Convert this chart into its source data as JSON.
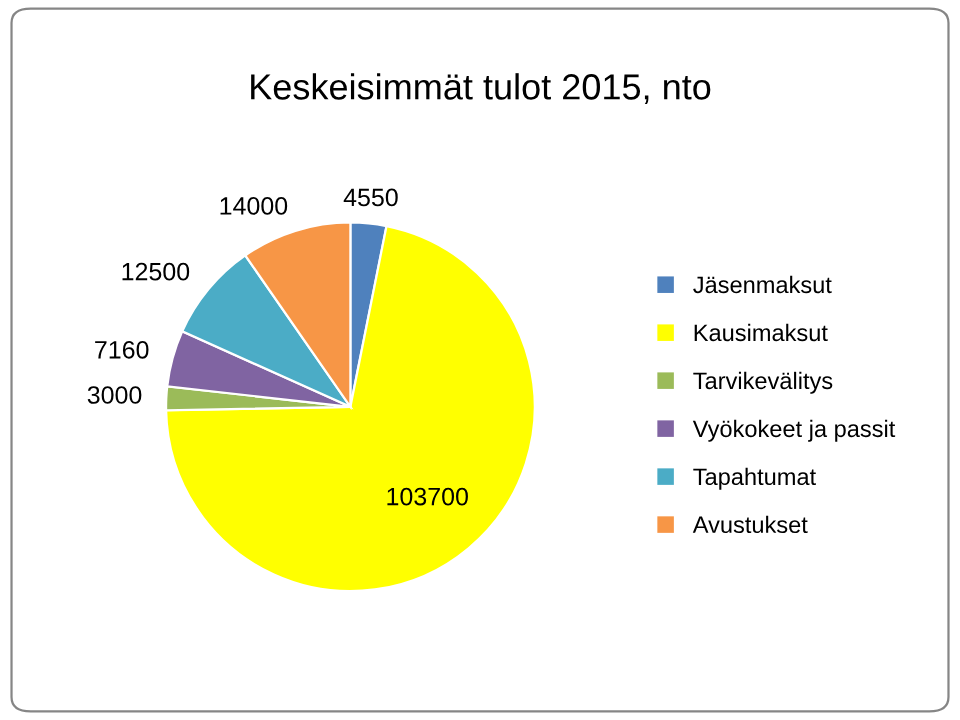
{
  "chart_data": {
    "type": "pie",
    "title": "Keskeisimmät tulot 2015, nto",
    "categories": [
      "Jäsenmaksut",
      "Kausimaksut",
      "Tarvikevälitys",
      "Vyökokeet ja passit",
      "Tapahtumat",
      "Avustukset"
    ],
    "values": [
      4550,
      103700,
      3000,
      7160,
      12500,
      14000
    ],
    "colors": [
      "#4f81bd",
      "#ffff00",
      "#9bbb59",
      "#8064a2",
      "#4bacc6",
      "#f79646"
    ],
    "data_labels": true,
    "legend": "right"
  }
}
